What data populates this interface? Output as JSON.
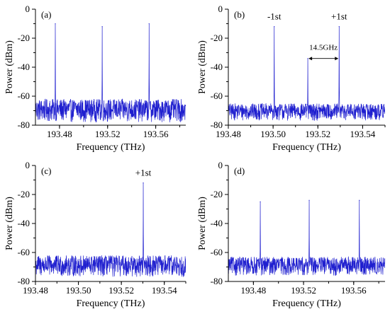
{
  "colors": {
    "trace": "#1f1fcf",
    "axis": "#000000"
  },
  "chart_data": [
    {
      "type": "line",
      "panel_label": "(a)",
      "xlabel": "Frequency (THz)",
      "ylabel": "Power (dBm)",
      "xlim": [
        193.46,
        193.585
      ],
      "ylim": [
        -80,
        0
      ],
      "xticks": [
        193.48,
        193.52,
        193.56
      ],
      "xtick_labels": [
        "193.48",
        "193.52",
        "193.56"
      ],
      "yticks": [
        0,
        -20,
        -40,
        -60,
        -80
      ],
      "ytick_labels": [
        "0",
        "-20",
        "-40",
        "-60",
        "-80"
      ],
      "noise_floor": [
        -78,
        -62
      ],
      "peaks": [
        {
          "x": 193.4765,
          "y": -10
        },
        {
          "x": 193.5155,
          "y": -12
        },
        {
          "x": 193.5545,
          "y": -10
        }
      ],
      "annotations": []
    },
    {
      "type": "line",
      "panel_label": "(b)",
      "xlabel": "Frequency (THz)",
      "ylabel": "Power (dBm)",
      "xlim": [
        193.48,
        193.55
      ],
      "ylim": [
        -80,
        0
      ],
      "xticks": [
        193.48,
        193.5,
        193.52,
        193.54
      ],
      "xtick_labels": [
        "193.48",
        "193.50",
        "193.52",
        "193.54"
      ],
      "yticks": [
        0,
        -20,
        -40,
        -60,
        -80
      ],
      "ytick_labels": [
        "0",
        "-20",
        "-40",
        "-60",
        "-80"
      ],
      "noise_floor": [
        -77,
        -65
      ],
      "peaks": [
        {
          "x": 193.5005,
          "y": -12
        },
        {
          "x": 193.5155,
          "y": -34
        },
        {
          "x": 193.5295,
          "y": -12
        }
      ],
      "annotations": [
        {
          "text": "-1st",
          "x": 193.5005,
          "y": -7
        },
        {
          "text": "+1st",
          "x": 193.5295,
          "y": -7
        },
        {
          "text": "14.5GHz",
          "x": 193.5225,
          "y": -28
        }
      ],
      "span_arrow": {
        "x1": 193.5155,
        "x2": 193.5295,
        "y": -34
      }
    },
    {
      "type": "line",
      "panel_label": "(c)",
      "xlabel": "Frequency (THz)",
      "ylabel": "Power (dBm)",
      "xlim": [
        193.48,
        193.55
      ],
      "ylim": [
        -80,
        0
      ],
      "xticks": [
        193.48,
        193.5,
        193.52,
        193.54
      ],
      "xtick_labels": [
        "193.48",
        "193.50",
        "193.52",
        "193.54"
      ],
      "yticks": [
        0,
        -20,
        -40,
        -60,
        -80
      ],
      "ytick_labels": [
        "0",
        "-20",
        "-40",
        "-60",
        "-80"
      ],
      "noise_floor": [
        -77,
        -62
      ],
      "peaks": [
        {
          "x": 193.5302,
          "y": -12
        }
      ],
      "annotations": [
        {
          "text": "+1st",
          "x": 193.5302,
          "y": -7
        }
      ]
    },
    {
      "type": "line",
      "panel_label": "(d)",
      "xlabel": "Frequency (THz)",
      "ylabel": "Power (dBm)",
      "xlim": [
        193.46,
        193.585
      ],
      "ylim": [
        -80,
        0
      ],
      "xticks": [
        193.48,
        193.52,
        193.56
      ],
      "xtick_labels": [
        "193.48",
        "193.52",
        "193.56"
      ],
      "yticks": [
        0,
        -20,
        -40,
        -60,
        -80
      ],
      "ytick_labels": [
        "0",
        "-20",
        "-40",
        "-60",
        "-80"
      ],
      "noise_floor": [
        -76,
        -63
      ],
      "peaks": [
        {
          "x": 193.4855,
          "y": -25
        },
        {
          "x": 193.5245,
          "y": -24
        },
        {
          "x": 193.5645,
          "y": -24
        }
      ],
      "annotations": []
    }
  ]
}
